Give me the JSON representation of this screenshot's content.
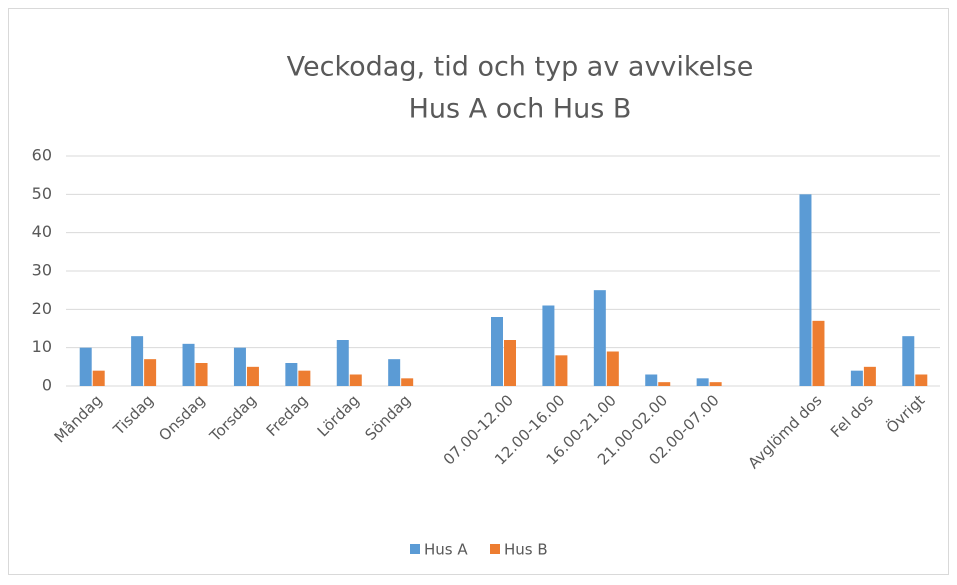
{
  "chart_data": {
    "type": "bar",
    "title": "Veckodag, tid och typ av avvikelse",
    "subtitle": "Hus A och Hus B",
    "categories": [
      "Måndag",
      "Tisdag",
      "Onsdag",
      "Torsdag",
      "Fredag",
      "Lördag",
      "Söndag",
      null,
      "07.00-12.00",
      "12.00-16.00",
      "16.00-21.00",
      "21.00-02.00",
      "02.00-07.00",
      null,
      "Avglömd dos",
      "Fel dos",
      "Övrigt"
    ],
    "series": [
      {
        "name": "Hus A",
        "color": "#5b9bd5",
        "values": [
          10,
          13,
          11,
          10,
          6,
          12,
          7,
          null,
          18,
          21,
          25,
          3,
          2,
          null,
          50,
          4,
          13
        ]
      },
      {
        "name": "Hus B",
        "color": "#ed7d31",
        "values": [
          4,
          7,
          6,
          5,
          4,
          3,
          2,
          null,
          12,
          8,
          9,
          1,
          1,
          null,
          17,
          5,
          3
        ]
      }
    ],
    "ylim": [
      0,
      60
    ],
    "yticks": [
      0,
      10,
      20,
      30,
      40,
      50,
      60
    ],
    "grid": true,
    "legend": "bottom"
  }
}
